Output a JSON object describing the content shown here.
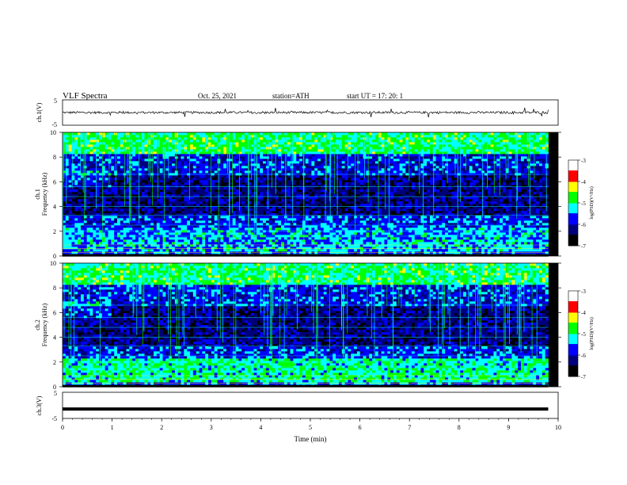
{
  "header": {
    "title": "VLF  Spectra",
    "date": "Oct. 25, 2021",
    "station": "station=ATH",
    "start": "start  UT  =    17: 20: 1"
  },
  "chart_data": [
    {
      "type": "line",
      "title": "",
      "ylabel": "ch.1(V)",
      "ylim": [
        -5,
        5
      ],
      "yticks": [
        "5",
        "-5"
      ],
      "xlim": [
        0,
        10
      ],
      "series": [
        {
          "values_mean": 0,
          "noise_range": [
            -1.2,
            0.8
          ]
        }
      ],
      "color": "#000000"
    },
    {
      "type": "heatmap",
      "title": "",
      "ylabel": "ch.1\nFrequency  (kHz)",
      "ylim": [
        0,
        10
      ],
      "yticks": [
        "0",
        "2",
        "4",
        "6",
        "8",
        "10"
      ],
      "xlim": [
        0,
        10
      ],
      "colorbar": {
        "label": "log(PSD)(V²/Hz)",
        "range": [
          -7,
          -3
        ],
        "ticks": [
          "-3",
          "-4",
          "-5",
          "-6",
          "-7"
        ]
      }
    },
    {
      "type": "heatmap",
      "title": "",
      "ylabel": "ch.2\nFrequency  (kHz)",
      "ylim": [
        0,
        10
      ],
      "yticks": [
        "0",
        "2",
        "4",
        "6",
        "8",
        "10"
      ],
      "xlim": [
        0,
        10
      ],
      "colorbar": {
        "label": "log(PSD)(V²/Hz)",
        "range": [
          -7,
          -3
        ],
        "ticks": [
          "-3",
          "-4",
          "-5",
          "-6",
          "-7"
        ]
      }
    },
    {
      "type": "line",
      "title": "",
      "ylabel": "ch.3(V)",
      "ylim": [
        -5,
        5
      ],
      "yticks": [
        "5",
        "-5"
      ],
      "xlim": [
        0,
        10
      ],
      "series": [
        {
          "values_mean": -1.4
        }
      ],
      "color": "#000000"
    }
  ],
  "xaxis": {
    "label": "Time  (min)",
    "ticks": [
      "0",
      "1",
      "2",
      "3",
      "4",
      "5",
      "6",
      "7",
      "8",
      "9",
      "10"
    ]
  },
  "colors": {
    "low": "#000000",
    "dark_blue": "#00007a",
    "blue": "#0000ff",
    "cyan": "#00ffff",
    "green": "#00ff00",
    "yellow": "#ffff00",
    "red": "#ff0000",
    "high": "#ffffff"
  }
}
